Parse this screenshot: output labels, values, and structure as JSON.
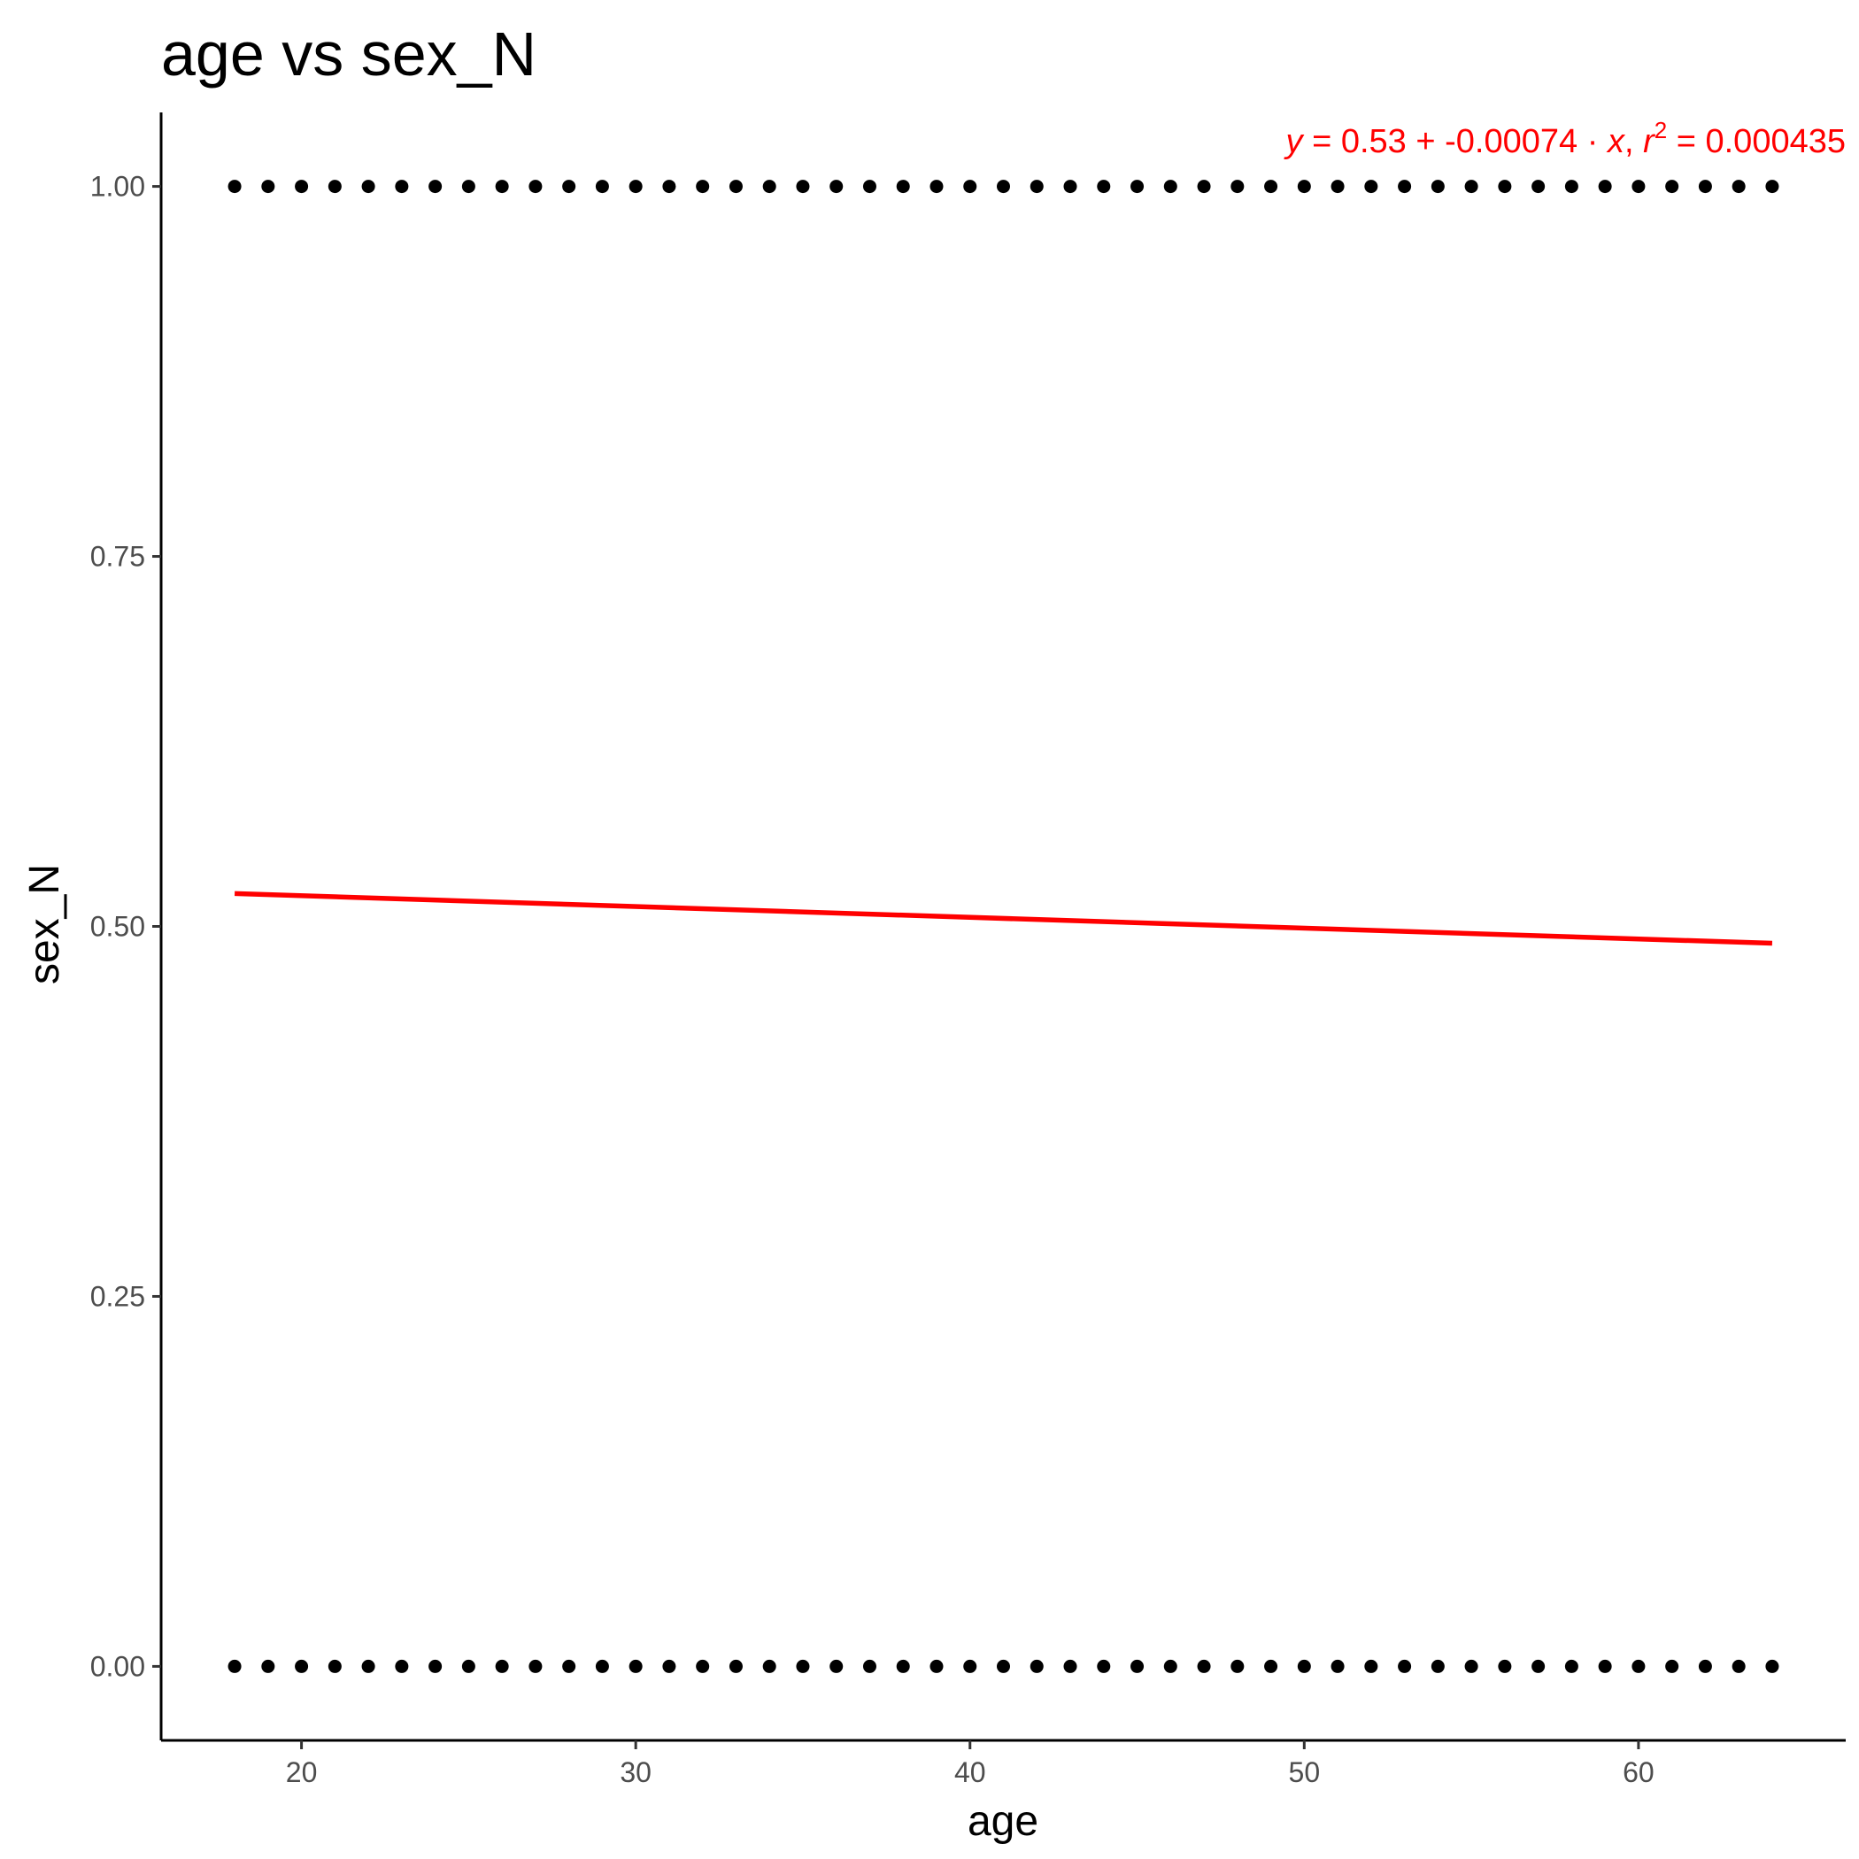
{
  "chart_data": {
    "type": "scatter",
    "title": "age vs sex_N",
    "xlabel": "age",
    "ylabel": "sex_N",
    "xlim": [
      15.8,
      66.2
    ],
    "ylim": [
      -0.05,
      1.05
    ],
    "xticks": [
      20,
      30,
      40,
      50,
      60
    ],
    "xtick_labels": [
      "20",
      "30",
      "40",
      "50",
      "60"
    ],
    "yticks": [
      0,
      0.25,
      0.5,
      0.75,
      1.0
    ],
    "ytick_labels": [
      "0.00",
      "0.25",
      "0.50",
      "0.75",
      "1.00"
    ],
    "grid": false,
    "legend": "none",
    "series": [
      {
        "kind": "points",
        "color": "#000000",
        "x": [
          18,
          19,
          20,
          21,
          22,
          23,
          24,
          25,
          26,
          27,
          28,
          29,
          30,
          31,
          32,
          33,
          34,
          35,
          36,
          37,
          38,
          39,
          40,
          41,
          42,
          43,
          44,
          45,
          46,
          47,
          48,
          49,
          50,
          51,
          52,
          53,
          54,
          55,
          56,
          57,
          58,
          59,
          60,
          61,
          62,
          63,
          64,
          18,
          19,
          20,
          21,
          22,
          23,
          24,
          25,
          26,
          27,
          28,
          29,
          30,
          31,
          32,
          33,
          34,
          35,
          36,
          37,
          38,
          39,
          40,
          41,
          42,
          43,
          44,
          45,
          46,
          47,
          48,
          49,
          50,
          51,
          52,
          53,
          54,
          55,
          56,
          57,
          58,
          59,
          60,
          61,
          62,
          63,
          64
        ],
        "y": [
          1,
          1,
          1,
          1,
          1,
          1,
          1,
          1,
          1,
          1,
          1,
          1,
          1,
          1,
          1,
          1,
          1,
          1,
          1,
          1,
          1,
          1,
          1,
          1,
          1,
          1,
          1,
          1,
          1,
          1,
          1,
          1,
          1,
          1,
          1,
          1,
          1,
          1,
          1,
          1,
          1,
          1,
          1,
          1,
          1,
          1,
          1,
          0,
          0,
          0,
          0,
          0,
          0,
          0,
          0,
          0,
          0,
          0,
          0,
          0,
          0,
          0,
          0,
          0,
          0,
          0,
          0,
          0,
          0,
          0,
          0,
          0,
          0,
          0,
          0,
          0,
          0,
          0,
          0,
          0,
          0,
          0,
          0,
          0,
          0,
          0,
          0,
          0,
          0,
          0,
          0,
          0,
          0,
          0
        ]
      },
      {
        "kind": "regression_line",
        "color": "#ff0000",
        "x": [
          18,
          64
        ],
        "y": [
          0.5222,
          0.4886
        ]
      }
    ],
    "annotation": {
      "color": "#ff0000",
      "equation_prefix": "y",
      "equals": " = ",
      "intercept": "0.53",
      "plus": " + ",
      "slope": "-0.00074",
      "dot": " · ",
      "x_var": "x",
      "comma": ",  ",
      "r_var": "r",
      "r_exp": "2",
      "r2_value": " = 0.000435"
    }
  }
}
